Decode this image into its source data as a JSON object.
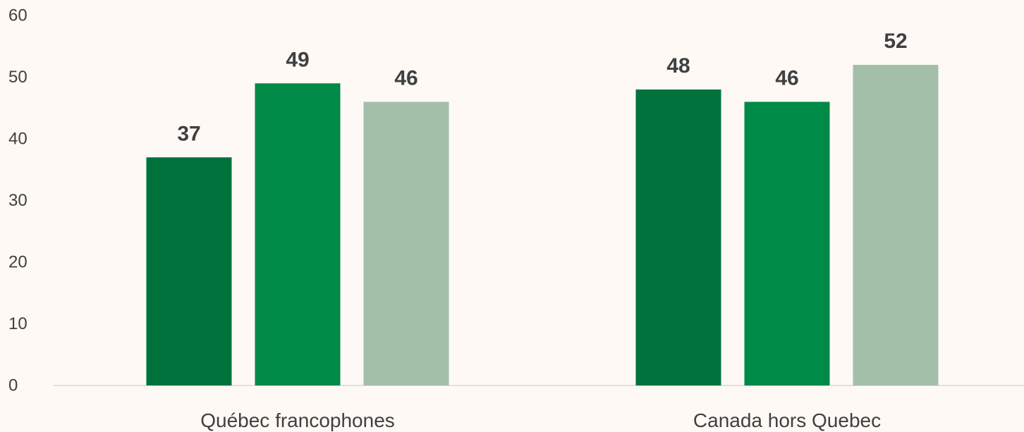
{
  "chart_data": {
    "type": "bar",
    "title": "",
    "xlabel": "",
    "ylabel": "",
    "categories": [
      "Québec francophones",
      "Canada hors Quebec"
    ],
    "series": [
      {
        "color": "#00733c",
        "values": [
          37,
          48
        ]
      },
      {
        "color": "#008a47",
        "values": [
          49,
          46
        ]
      },
      {
        "color": "#a3bfaa",
        "values": [
          46,
          52
        ]
      }
    ],
    "ylim": [
      0,
      60
    ],
    "yticks": [
      0,
      10,
      20,
      30,
      40,
      50,
      60
    ],
    "data_labels": true,
    "grid": false,
    "legend": "none"
  }
}
